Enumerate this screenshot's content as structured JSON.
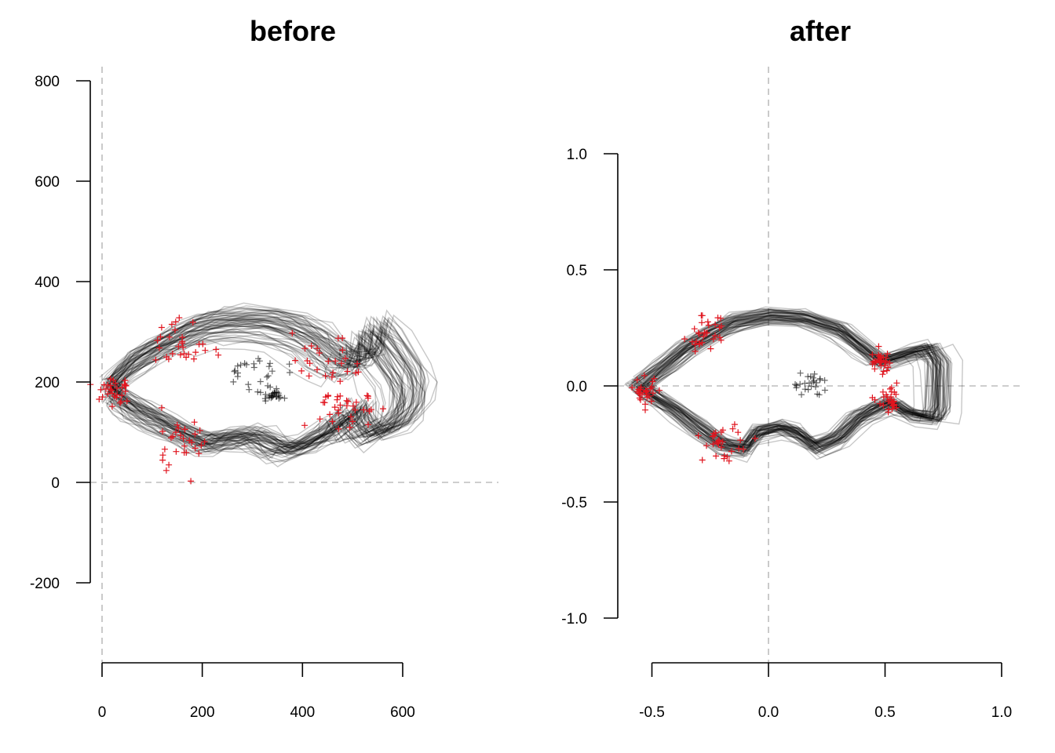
{
  "chart_data": [
    {
      "type": "line",
      "title": "before",
      "xlabel": "",
      "ylabel": "",
      "xlim": [
        0,
        800
      ],
      "ylim": [
        -300,
        800
      ],
      "x_ticks": [
        0,
        200,
        400,
        600
      ],
      "x_tick_labels": [
        "0",
        "200",
        "400",
        "600"
      ],
      "y_ticks": [
        -200,
        0,
        200,
        400,
        600,
        800
      ],
      "y_tick_labels": [
        "-200",
        "0",
        "200",
        "400",
        "600",
        "800"
      ],
      "reference_lines": {
        "x": 0,
        "y": 0
      },
      "n_outlines": 60,
      "mean_outline": {
        "x": [
          15,
          30,
          60,
          100,
          140,
          180,
          220,
          270,
          330,
          380,
          420,
          450,
          480,
          505,
          520,
          525,
          530,
          560,
          600,
          610,
          605,
          580,
          530,
          505,
          500,
          480,
          440,
          400,
          370,
          340,
          310,
          290,
          260,
          230,
          205,
          170,
          130,
          90,
          55,
          30,
          15
        ],
        "y": [
          185,
          205,
          235,
          260,
          280,
          300,
          310,
          315,
          312,
          300,
          280,
          255,
          235,
          232,
          240,
          260,
          300,
          270,
          210,
          180,
          140,
          110,
          90,
          120,
          140,
          120,
          90,
          70,
          60,
          70,
          85,
          88,
          85,
          80,
          75,
          90,
          110,
          130,
          150,
          170,
          185
        ]
      },
      "outline_color": "#000000",
      "landmark_color": "#e0141e",
      "landmarks_red": [
        {
          "x": 20,
          "y": 185,
          "spread": 18
        },
        {
          "x": 160,
          "y": 270,
          "spread": 28
        },
        {
          "x": 160,
          "y": 90,
          "spread": 28
        },
        {
          "x": 450,
          "y": 220,
          "spread": 35
        },
        {
          "x": 490,
          "y": 140,
          "spread": 30
        }
      ],
      "landmarks_black": [
        {
          "x": 340,
          "y": 175,
          "spread": 10
        },
        {
          "x": 300,
          "y": 220,
          "spread": 30
        }
      ]
    },
    {
      "type": "line",
      "title": "after",
      "xlabel": "",
      "ylabel": "",
      "xlim": [
        -0.65,
        1.1
      ],
      "ylim": [
        -1.2,
        1.2
      ],
      "x_ticks": [
        -0.5,
        0.0,
        0.5,
        1.0
      ],
      "x_tick_labels": [
        "-0.5",
        "0.0",
        "0.5",
        "1.0"
      ],
      "y_ticks": [
        -1.0,
        -0.5,
        0.0,
        0.5,
        1.0
      ],
      "y_tick_labels": [
        "-1.0",
        "-0.5",
        "0.0",
        "0.5",
        "1.0"
      ],
      "reference_lines": {
        "x": 0,
        "y": 0
      },
      "n_outlines": 60,
      "mean_outline": {
        "x": [
          -0.55,
          -0.45,
          -0.35,
          -0.25,
          -0.15,
          0.0,
          0.15,
          0.3,
          0.4,
          0.48,
          0.6,
          0.68,
          0.72,
          0.72,
          0.7,
          0.6,
          0.52,
          0.45,
          0.38,
          0.3,
          0.2,
          0.12,
          0.05,
          -0.05,
          -0.1,
          -0.2,
          -0.3,
          -0.4,
          -0.5,
          -0.55
        ],
        "y": [
          0.0,
          0.08,
          0.16,
          0.22,
          0.27,
          0.3,
          0.29,
          0.24,
          0.16,
          0.1,
          0.14,
          0.16,
          0.1,
          -0.1,
          -0.14,
          -0.12,
          -0.07,
          -0.1,
          -0.14,
          -0.22,
          -0.26,
          -0.2,
          -0.18,
          -0.2,
          -0.27,
          -0.25,
          -0.18,
          -0.1,
          -0.04,
          0.0
        ]
      },
      "outline_color": "#000000",
      "landmark_color": "#e0141e",
      "landmarks_red": [
        {
          "x": -0.53,
          "y": -0.03,
          "spread": 0.03
        },
        {
          "x": -0.27,
          "y": 0.22,
          "spread": 0.04
        },
        {
          "x": -0.2,
          "y": -0.24,
          "spread": 0.04
        },
        {
          "x": 0.48,
          "y": 0.1,
          "spread": 0.025
        },
        {
          "x": 0.52,
          "y": -0.07,
          "spread": 0.025
        }
      ],
      "landmarks_black": [
        {
          "x": 0.18,
          "y": 0.01,
          "spread": 0.04
        }
      ]
    }
  ]
}
